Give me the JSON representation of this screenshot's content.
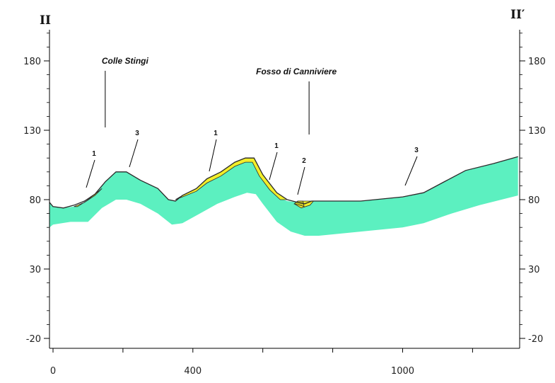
{
  "section": {
    "left_label": "II",
    "right_label": "II′"
  },
  "axes": {
    "y_ticks": [
      "180",
      "130",
      "80",
      "30",
      "-20"
    ],
    "y_tick_values": [
      180,
      130,
      80,
      30,
      -20
    ],
    "x_ticks": [
      "0",
      "400",
      "1000"
    ],
    "x_tick_values": [
      0,
      400,
      1000
    ],
    "y_range": [
      -25,
      200
    ],
    "x_range": [
      -20,
      1330
    ]
  },
  "places": [
    {
      "name": "Colle Stingi",
      "x": 210,
      "elev": 98
    },
    {
      "name": "Fosso di Canniviere",
      "x": 700,
      "elev": 78
    }
  ],
  "unit_labels": [
    {
      "text": "1",
      "x": 115,
      "elev": 111
    },
    {
      "text": "3",
      "x": 248,
      "elev": 127
    },
    {
      "text": "1",
      "x": 474,
      "elev": 125
    },
    {
      "text": "1",
      "x": 650,
      "elev": 115
    },
    {
      "text": "2",
      "x": 722,
      "elev": 108
    },
    {
      "text": "3",
      "x": 1062,
      "elev": 113
    }
  ],
  "legend_colors": {
    "unit_3": "#5cf0c0",
    "unit_1": "#f2ee2a",
    "outline": "#2b2b2b"
  },
  "profile": {
    "surface": [
      [
        -10,
        78
      ],
      [
        0,
        75
      ],
      [
        30,
        74
      ],
      [
        60,
        76
      ],
      [
        90,
        79
      ],
      [
        120,
        84
      ],
      [
        150,
        93
      ],
      [
        180,
        100
      ],
      [
        210,
        100
      ],
      [
        250,
        94
      ],
      [
        300,
        88
      ],
      [
        330,
        80
      ],
      [
        350,
        79
      ],
      [
        370,
        83
      ],
      [
        410,
        88
      ],
      [
        440,
        95
      ],
      [
        480,
        100
      ],
      [
        520,
        107
      ],
      [
        550,
        110
      ],
      [
        575,
        110
      ],
      [
        600,
        98
      ],
      [
        640,
        85
      ],
      [
        670,
        80
      ],
      [
        700,
        78
      ],
      [
        720,
        77
      ],
      [
        740,
        79
      ],
      [
        780,
        79
      ],
      [
        880,
        79
      ],
      [
        1000,
        82
      ],
      [
        1060,
        85
      ],
      [
        1120,
        93
      ],
      [
        1180,
        101
      ],
      [
        1260,
        106
      ],
      [
        1330,
        111
      ]
    ],
    "unit3_top": [
      [
        -10,
        78
      ],
      [
        0,
        75
      ],
      [
        30,
        74
      ],
      [
        60,
        75
      ],
      [
        90,
        78
      ],
      [
        120,
        83
      ],
      [
        150,
        93
      ],
      [
        180,
        100
      ],
      [
        210,
        100
      ],
      [
        250,
        94
      ],
      [
        300,
        88
      ],
      [
        330,
        80
      ],
      [
        350,
        79
      ],
      [
        370,
        82
      ],
      [
        410,
        86
      ],
      [
        440,
        92
      ],
      [
        480,
        97
      ],
      [
        520,
        104
      ],
      [
        550,
        107
      ],
      [
        575,
        107
      ],
      [
        600,
        95
      ],
      [
        640,
        82
      ],
      [
        670,
        79
      ],
      [
        700,
        78
      ],
      [
        720,
        76
      ],
      [
        740,
        79
      ],
      [
        780,
        79
      ],
      [
        880,
        79
      ],
      [
        1000,
        82
      ],
      [
        1060,
        85
      ],
      [
        1120,
        93
      ],
      [
        1180,
        101
      ],
      [
        1260,
        106
      ],
      [
        1330,
        111
      ]
    ],
    "unit3_base": [
      [
        -10,
        60
      ],
      [
        0,
        62
      ],
      [
        50,
        64
      ],
      [
        100,
        64
      ],
      [
        140,
        74
      ],
      [
        180,
        80
      ],
      [
        210,
        80
      ],
      [
        250,
        77
      ],
      [
        300,
        70
      ],
      [
        340,
        62
      ],
      [
        370,
        63
      ],
      [
        420,
        70
      ],
      [
        470,
        77
      ],
      [
        520,
        82
      ],
      [
        555,
        85
      ],
      [
        580,
        84
      ],
      [
        600,
        77
      ],
      [
        640,
        64
      ],
      [
        680,
        57
      ],
      [
        720,
        54
      ],
      [
        760,
        54
      ],
      [
        880,
        57
      ],
      [
        1000,
        60
      ],
      [
        1060,
        63
      ],
      [
        1140,
        70
      ],
      [
        1220,
        76
      ],
      [
        1330,
        83
      ]
    ],
    "unit1_patches": [
      [
        [
          60,
          75
        ],
        [
          90,
          78
        ],
        [
          120,
          83
        ],
        [
          140,
          88
        ],
        [
          120,
          84
        ],
        [
          95,
          79
        ],
        [
          70,
          75
        ]
      ],
      [
        [
          350,
          80
        ],
        [
          370,
          83
        ],
        [
          410,
          88
        ],
        [
          440,
          95
        ],
        [
          480,
          100
        ],
        [
          520,
          107
        ],
        [
          550,
          110
        ],
        [
          575,
          110
        ],
        [
          600,
          98
        ],
        [
          640,
          85
        ],
        [
          670,
          80
        ],
        [
          650,
          80
        ],
        [
          620,
          87
        ],
        [
          590,
          97
        ],
        [
          570,
          107
        ],
        [
          550,
          107
        ],
        [
          520,
          104
        ],
        [
          480,
          97
        ],
        [
          440,
          92
        ],
        [
          410,
          86
        ],
        [
          370,
          82
        ]
      ],
      [
        [
          690,
          77
        ],
        [
          710,
          74
        ],
        [
          735,
          76
        ],
        [
          745,
          79
        ],
        [
          720,
          79
        ],
        [
          700,
          79
        ]
      ]
    ],
    "unit2_patch": [
      [
        690,
        77
      ],
      [
        705,
        76
      ],
      [
        718,
        75
      ],
      [
        715,
        79
      ],
      [
        700,
        79
      ]
    ]
  }
}
